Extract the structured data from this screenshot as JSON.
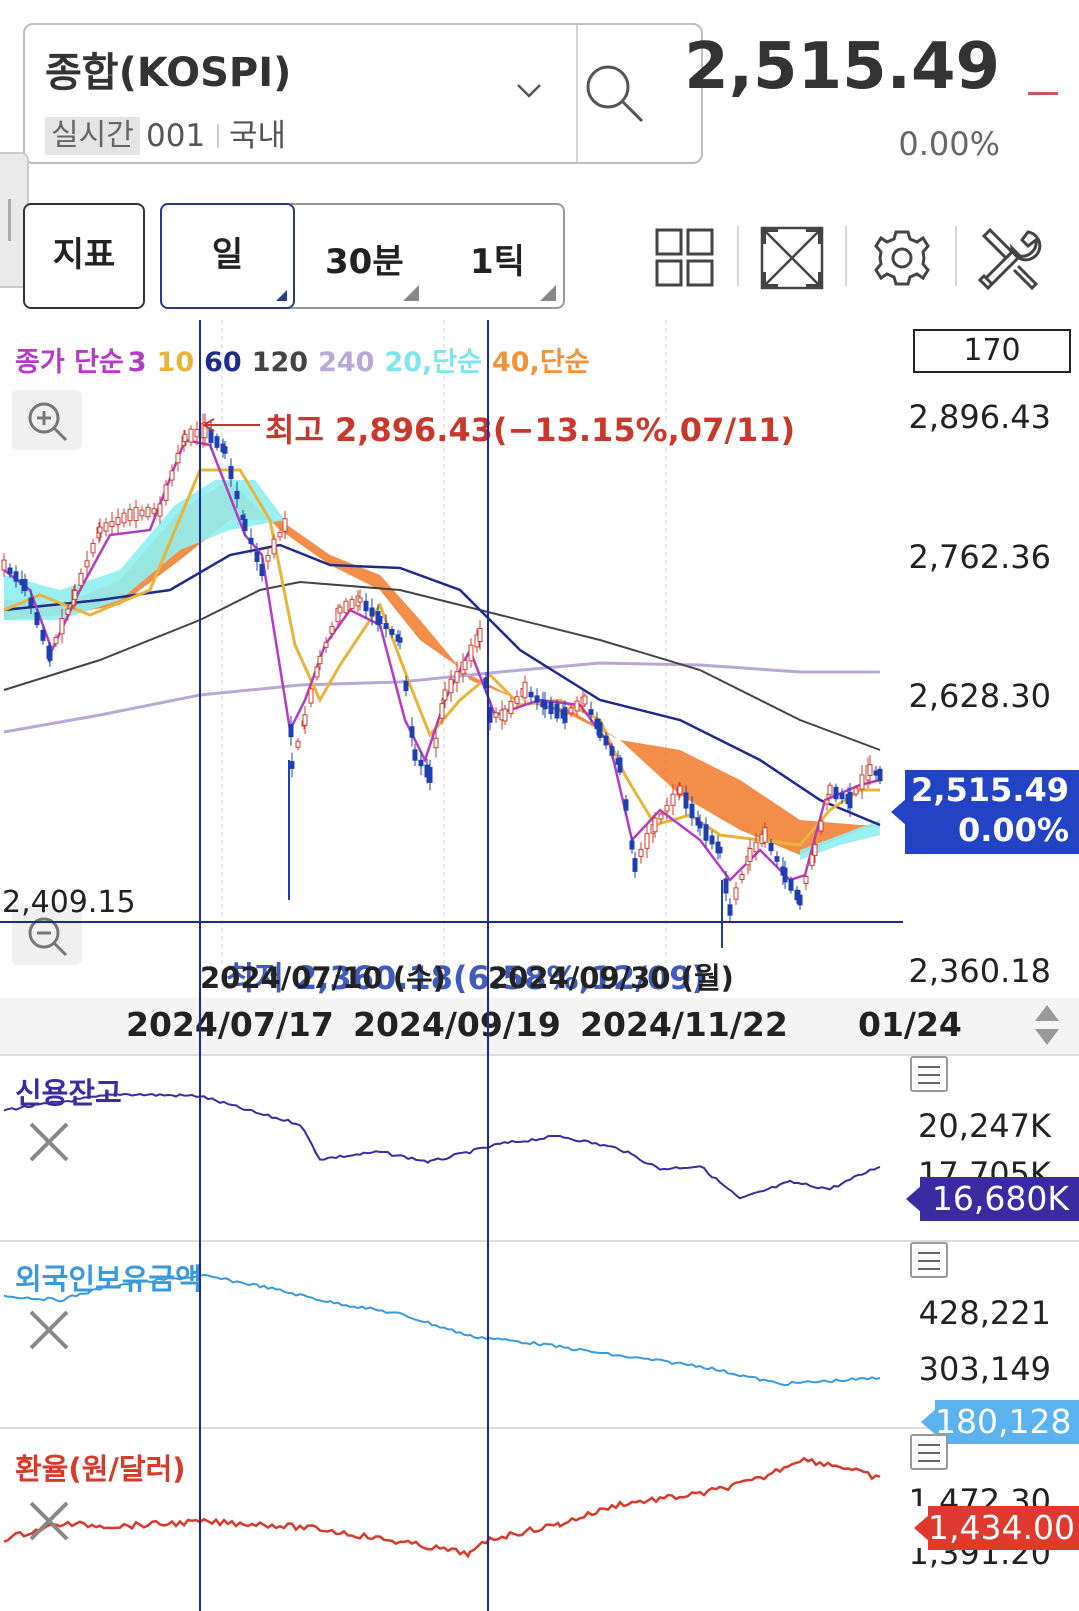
{
  "header": {
    "symbol_name": "종합(KOSPI)",
    "realtime_tag": "실시간",
    "code": "001",
    "market": "국내",
    "price": "2,515.49",
    "change_pct": "0.00%"
  },
  "toolbar": {
    "indicator_btn": "지표",
    "periods": [
      "일",
      "30분",
      "1틱"
    ],
    "icons": [
      "grid-layout-icon",
      "fullscreen-icon",
      "settings-icon",
      "tools-icon"
    ]
  },
  "main_chart": {
    "legend": {
      "close": "종가 단순",
      "ma3": "3",
      "ma10": "10",
      "ma60": "60",
      "ma120": "120",
      "ma240": "240",
      "cloud1": "20,단순",
      "cloud2": "40,단순"
    },
    "count_box": "170",
    "high_annotation": "최고 2,896.43(−13.15%,07/11)",
    "low_annotation": "최저 2,360.18(6.58%,12/09)",
    "hline_label": "2,409.15",
    "crosshair_dates": [
      "2024/07/10 (수)",
      "2024/09/30 (월)"
    ],
    "y_labels": [
      "2,896.43",
      "2,762.36",
      "2,628.30",
      "2,360.18"
    ],
    "current_badge": [
      "2,515.49",
      "0.00%"
    ],
    "x_labels": [
      "2024/07/17",
      "2024/09/19",
      "2024/11/22",
      "01/24"
    ],
    "colors": {
      "up": "#d33a2c",
      "down": "#1f3fb0",
      "ma3": "#b23cc4",
      "ma10": "#e8b43a",
      "ma60": "#1f2a8a",
      "ma120": "#444444",
      "ma240": "#b9a7d6",
      "cloud_up": "#8ff0f2",
      "cloud_down": "#f07a2a"
    }
  },
  "indicators": [
    {
      "title": "신용잔고",
      "color": "#3b2aa0",
      "labels": [
        "20,247K",
        "17,705K"
      ],
      "badge": "16,680K",
      "badge_color": "#3b2aa0"
    },
    {
      "title": "외국인보유금액",
      "color": "#3a9ad9",
      "labels": [
        "428,221",
        "303,149"
      ],
      "badge": "180,128",
      "badge_color": "#5ab2ee"
    },
    {
      "title": "환율(원/달러)",
      "color": "#d63a2a",
      "labels": [
        "1,472.30",
        "1,391.20"
      ],
      "badge": "1,434.00",
      "badge_color": "#e03a2e"
    }
  ]
}
